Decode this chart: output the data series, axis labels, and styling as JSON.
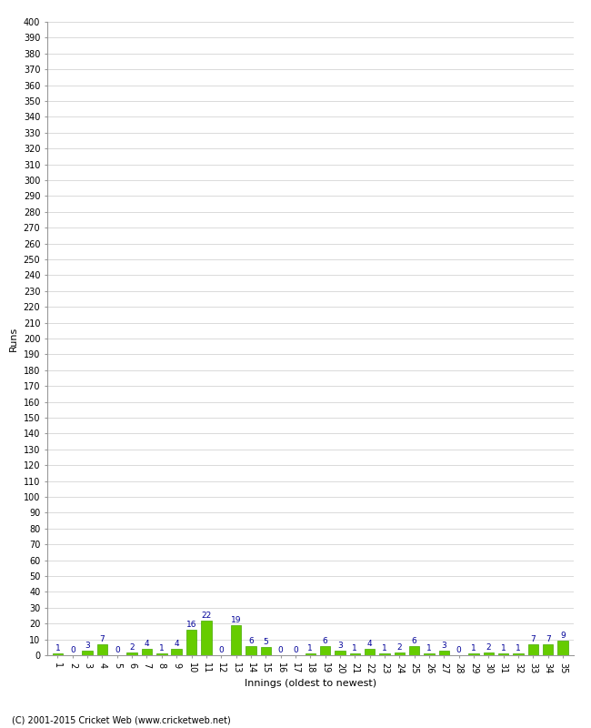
{
  "values": [
    1,
    0,
    3,
    7,
    0,
    2,
    4,
    1,
    4,
    16,
    22,
    0,
    19,
    6,
    5,
    0,
    0,
    1,
    6,
    3,
    1,
    4,
    1,
    2,
    6,
    1,
    3,
    0,
    1,
    2,
    1,
    1,
    7,
    7,
    9
  ],
  "bar_color": "#66cc00",
  "bar_edge_color": "#44aa00",
  "label_color": "#000099",
  "ylabel": "Runs",
  "xlabel": "Innings (oldest to newest)",
  "ylim": [
    0,
    400
  ],
  "ytick_step": 10,
  "background_color": "#ffffff",
  "grid_color": "#cccccc",
  "footer": "(C) 2001-2015 Cricket Web (www.cricketweb.net)",
  "label_fontsize": 6.5,
  "axis_tick_fontsize": 7,
  "axis_label_fontsize": 8,
  "footer_fontsize": 7
}
